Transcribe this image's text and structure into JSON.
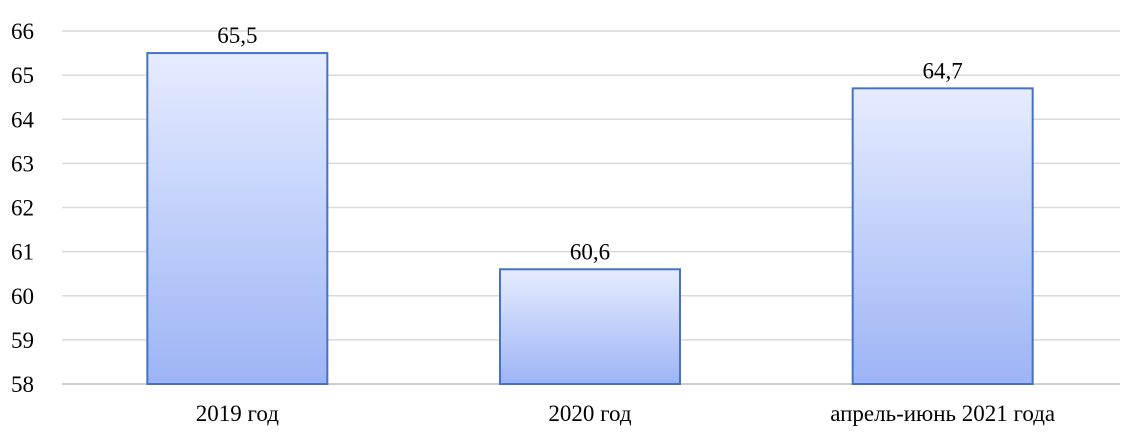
{
  "chart_data": {
    "type": "bar",
    "title": "",
    "xlabel": "",
    "ylabel": "",
    "categories": [
      "2019 год",
      "2020 год",
      "апрель-июнь 2021 года"
    ],
    "values": [
      65.5,
      60.6,
      64.7
    ],
    "value_labels": [
      "65,5",
      "60,6",
      "64,7"
    ],
    "ylim": [
      58,
      66
    ],
    "yticks": [
      58,
      59,
      60,
      61,
      62,
      63,
      64,
      65,
      66
    ],
    "grid": true,
    "legend": "none",
    "colors": {
      "bar_top": "#e6ecff",
      "bar_bottom": "#9db4f5",
      "bar_border": "#4472c4",
      "grid": "#d9d9d9"
    }
  }
}
